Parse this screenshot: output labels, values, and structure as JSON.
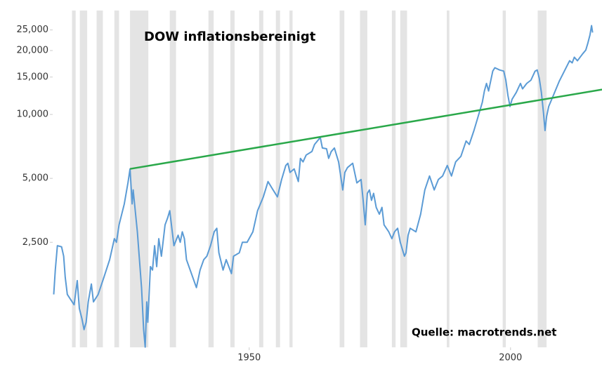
{
  "chart_data": {
    "type": "line",
    "title": "DOW inflationsbereinigt",
    "annotation": "Quelle: macrotrends.net",
    "log_y": true,
    "grid": false,
    "xlim": [
      1912.4,
      2017.5
    ],
    "ylim": [
      800,
      28600
    ],
    "xticks": [
      1950,
      2000
    ],
    "yticks": [
      {
        "value": 2500,
        "label": "2,500"
      },
      {
        "value": 5000,
        "label": "5,000"
      },
      {
        "value": 10000,
        "label": "10,000"
      },
      {
        "value": 15000,
        "label": "15,000"
      },
      {
        "value": 20000,
        "label": "20,000"
      },
      {
        "value": 25000,
        "label": "25,000"
      }
    ],
    "recession_color": "#e4e4e4",
    "recessions": [
      [
        1916.1,
        1916.8
      ],
      [
        1917.6,
        1919.0
      ],
      [
        1920.8,
        1922.0
      ],
      [
        1924.2,
        1925.1
      ],
      [
        1927.2,
        1930.7
      ],
      [
        1934.8,
        1936.0
      ],
      [
        1942.2,
        1943.2
      ],
      [
        1946.4,
        1947.2
      ],
      [
        1951.9,
        1952.7
      ],
      [
        1955.1,
        1955.9
      ],
      [
        1957.7,
        1958.3
      ],
      [
        1967.3,
        1968.2
      ],
      [
        1971.2,
        1972.6
      ],
      [
        1977.3,
        1978.0
      ],
      [
        1978.9,
        1980.2
      ],
      [
        1987.8,
        1988.3
      ],
      [
        1998.5,
        1999.1
      ],
      [
        2005.2,
        2006.9
      ]
    ],
    "series": [
      {
        "color": "#5b9bd5",
        "x": [
          1912.6,
          1912.9,
          1913.3,
          1914.1,
          1914.5,
          1914.8,
          1915.2,
          1915.7,
          1916.5,
          1917.1,
          1917.5,
          1918.0,
          1918.4,
          1918.8,
          1919.2,
          1919.8,
          1920.2,
          1921.1,
          1922.2,
          1923.3,
          1924.2,
          1924.6,
          1925.1,
          1926.1,
          1926.8,
          1927.2,
          1927.6,
          1927.8,
          1928.6,
          1929.4,
          1929.8,
          1930.1,
          1930.4,
          1930.6,
          1931.1,
          1931.5,
          1931.9,
          1932.3,
          1932.7,
          1933.2,
          1933.9,
          1934.4,
          1934.8,
          1935.2,
          1935.6,
          1936.4,
          1936.8,
          1937.2,
          1937.6,
          1938.0,
          1939.2,
          1939.9,
          1940.6,
          1941.3,
          1941.9,
          1942.6,
          1943.3,
          1943.8,
          1944.2,
          1945.0,
          1945.6,
          1946.6,
          1947.0,
          1948.1,
          1948.7,
          1949.6,
          1950.7,
          1951.6,
          1952.7,
          1953.6,
          1954.4,
          1955.4,
          1956.2,
          1957.0,
          1957.4,
          1957.8,
          1958.6,
          1959.4,
          1959.8,
          1960.3,
          1960.9,
          1962.0,
          1962.5,
          1963.6,
          1964.0,
          1964.8,
          1965.2,
          1965.7,
          1966.3,
          1967.1,
          1967.9,
          1968.3,
          1968.8,
          1969.8,
          1970.6,
          1971.4,
          1971.8,
          1972.2,
          1972.6,
          1973.0,
          1973.4,
          1973.8,
          1974.3,
          1974.9,
          1975.4,
          1975.8,
          1976.7,
          1977.3,
          1977.8,
          1978.4,
          1978.9,
          1979.7,
          1980.0,
          1980.4,
          1980.8,
          1981.9,
          1982.8,
          1983.6,
          1984.5,
          1985.4,
          1986.2,
          1987.0,
          1987.9,
          1988.7,
          1989.5,
          1990.5,
          1991.5,
          1992.1,
          1993.0,
          1993.8,
          1994.6,
          1995.0,
          1995.4,
          1995.8,
          1996.6,
          1997.0,
          1997.9,
          1998.7,
          1999.1,
          1999.5,
          1999.9,
          2000.3,
          2001.1,
          2001.9,
          2002.3,
          2003.1,
          2003.9,
          2004.7,
          2005.1,
          2005.5,
          2005.9,
          2006.3,
          2006.6,
          2006.9,
          2007.3,
          2008.2,
          2009.3,
          2010.3,
          2011.3,
          2011.8,
          2012.2,
          2012.8,
          2013.8,
          2014.4,
          2014.8,
          2015.2,
          2015.5,
          2015.7
        ],
        "values": [
          1420,
          1850,
          2410,
          2380,
          2150,
          1710,
          1420,
          1360,
          1270,
          1650,
          1220,
          1090,
          970,
          1050,
          1310,
          1590,
          1310,
          1420,
          1710,
          2070,
          2600,
          2500,
          3020,
          3790,
          4760,
          5540,
          3790,
          4410,
          2800,
          1530,
          970,
          802,
          1310,
          1050,
          1920,
          1850,
          2410,
          1920,
          2600,
          2150,
          3020,
          3260,
          3520,
          2910,
          2410,
          2700,
          2500,
          2800,
          2600,
          2070,
          1710,
          1530,
          1850,
          2070,
          2150,
          2410,
          2800,
          2910,
          2230,
          1850,
          2070,
          1780,
          2150,
          2230,
          2500,
          2500,
          2800,
          3520,
          4090,
          4830,
          4480,
          4090,
          4940,
          5750,
          5890,
          5330,
          5540,
          4830,
          6210,
          5980,
          6440,
          6690,
          7220,
          7790,
          6950,
          6890,
          6210,
          6690,
          6950,
          5980,
          4410,
          5330,
          5620,
          5890,
          4760,
          4940,
          3940,
          3020,
          4250,
          4410,
          3940,
          4250,
          3650,
          3390,
          3650,
          3020,
          2800,
          2600,
          2800,
          2910,
          2500,
          2150,
          2230,
          2700,
          2910,
          2800,
          3390,
          4410,
          5130,
          4410,
          4940,
          5130,
          5750,
          5130,
          5980,
          6350,
          7500,
          7220,
          8400,
          9780,
          11400,
          12900,
          14000,
          12900,
          16000,
          16600,
          16200,
          16000,
          14500,
          12300,
          10900,
          11800,
          12700,
          14000,
          13200,
          14000,
          14500,
          16000,
          16200,
          14800,
          12700,
          10200,
          8400,
          9780,
          10900,
          12300,
          14300,
          16000,
          17900,
          17500,
          18600,
          17900,
          19300,
          20100,
          21700,
          23700,
          26200,
          24300
        ]
      },
      {
        "color": "#2aa84a",
        "x": [
          1927.2,
          2017.5
        ],
        "values": [
          5540,
          13100
        ]
      }
    ]
  }
}
